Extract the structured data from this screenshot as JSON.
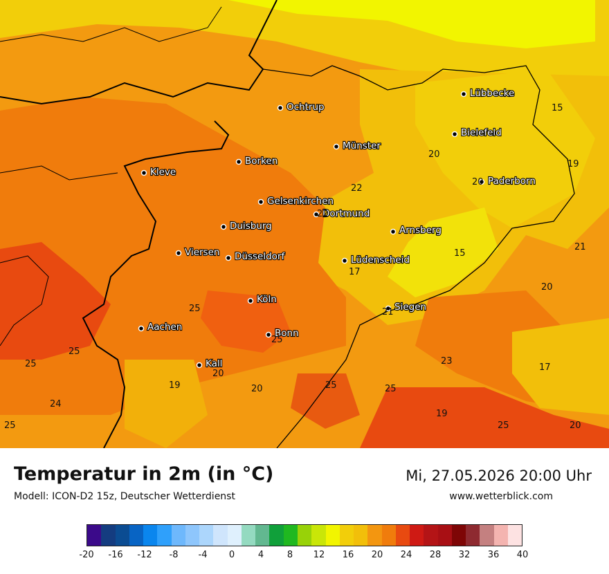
{
  "map": {
    "title": "Temperatur in 2m (in °C)",
    "model": "Modell: ICON-D2 15z, Deutscher Wetterdienst",
    "datetime": "Mi, 27.05.2026 20:00 Uhr",
    "website": "www.wetterblick.com",
    "cities": [
      "Lübbecke",
      "Ochtrup",
      "Bielefeld",
      "Münster",
      "Borken",
      "Kleve",
      "Paderborn",
      "Gelsenkirchen",
      "Dortmund",
      "Duisburg",
      "Arnsberg",
      "Viersen",
      "Düsseldorf",
      "Lüdenscheid",
      "Köln",
      "Siegen",
      "Aachen",
      "Bonn",
      "Kall"
    ],
    "values": [
      "15",
      "20",
      "19",
      "22",
      "20",
      "22",
      "21",
      "15",
      "17",
      "20",
      "25",
      "21",
      "25",
      "25",
      "25",
      "23",
      "17",
      "20",
      "19",
      "20",
      "25",
      "25",
      "24",
      "19",
      "25",
      "25",
      "20"
    ],
    "legend": {
      "colors": [
        "#3b0a8a",
        "#143c80",
        "#0b4c92",
        "#0864c4",
        "#0a86ee",
        "#2fa0fb",
        "#6eb8fc",
        "#8ec6fc",
        "#acd6fc",
        "#cfe5fc",
        "#dff0fd",
        "#94dac0",
        "#62b890",
        "#10a03a",
        "#20b820",
        "#98d208",
        "#c9e608",
        "#f2f500",
        "#f2ce0a",
        "#f2bf0a",
        "#f39610",
        "#f07c0c",
        "#e84a10",
        "#cf1a14",
        "#b41416",
        "#a80f14",
        "#7e0606",
        "#8e2a30",
        "#c48080",
        "#f4b4b0",
        "#fde2e2"
      ],
      "ticks": [
        "-20",
        "-16",
        "-12",
        "-8",
        "-4",
        "0",
        "4",
        "8",
        "12",
        "16",
        "20",
        "24",
        "28",
        "32",
        "36",
        "40"
      ]
    }
  }
}
